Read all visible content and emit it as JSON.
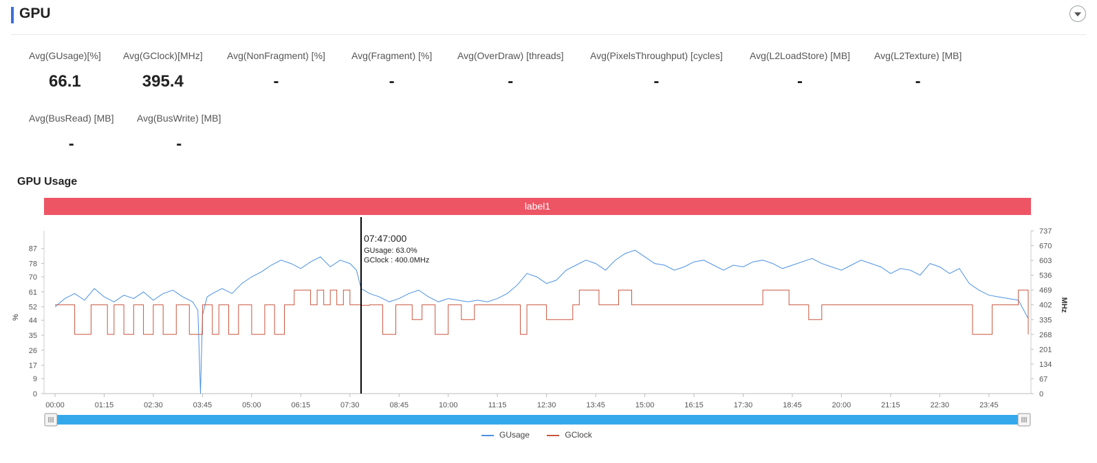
{
  "section": {
    "title": "GPU"
  },
  "metrics": [
    {
      "label": "Avg(GUsage)[%]",
      "value": "66.1"
    },
    {
      "label": "Avg(GClock)[MHz]",
      "value": "395.4"
    },
    {
      "label": "Avg(NonFragment) [%]",
      "value": "-"
    },
    {
      "label": "Avg(Fragment) [%]",
      "value": "-"
    },
    {
      "label": "Avg(OverDraw) [threads]",
      "value": "-"
    },
    {
      "label": "Avg(PixelsThroughput) [cycles]",
      "value": "-"
    },
    {
      "label": "Avg(L2LoadStore) [MB]",
      "value": "-"
    },
    {
      "label": "Avg(L2Texture) [MB]",
      "value": "-"
    },
    {
      "label": "Avg(BusRead) [MB]",
      "value": "-"
    },
    {
      "label": "Avg(BusWrite) [MB]",
      "value": "-"
    }
  ],
  "chart_title": "GPU Usage",
  "label_band": "label1",
  "chart_data": {
    "type": "line",
    "y_left_label": "%",
    "y_right_label": "MHz",
    "y_left_ticks": [
      "0",
      "9",
      "17",
      "26",
      "35",
      "44",
      "52",
      "61",
      "70",
      "78",
      "87"
    ],
    "y_right_ticks": [
      "0",
      "67",
      "134",
      "201",
      "268",
      "335",
      "402",
      "469",
      "536",
      "603",
      "670",
      "737"
    ],
    "y_left_range": [
      0,
      97.6
    ],
    "y_right_range": [
      0,
      737
    ],
    "x_ticks": [
      "00:00",
      "01:15",
      "02:30",
      "03:45",
      "05:00",
      "06:15",
      "07:30",
      "08:45",
      "10:00",
      "11:15",
      "12:30",
      "13:45",
      "15:00",
      "16:15",
      "17:30",
      "18:45",
      "20:00",
      "21:15",
      "22:30",
      "23:45"
    ],
    "x_range_minutes": [
      0,
      1485
    ],
    "tooltip": {
      "time": "07:47:000",
      "minute": 467,
      "line1": "GUsage: 63.0%",
      "line2": "GClock : 400.0MHz"
    },
    "series": [
      {
        "name": "GUsage",
        "axis": "left",
        "color": "#4a90e2",
        "x": [
          0,
          15,
          30,
          45,
          60,
          75,
          90,
          105,
          120,
          135,
          150,
          165,
          180,
          195,
          210,
          218,
          222,
          225,
          232,
          240,
          255,
          270,
          285,
          300,
          315,
          330,
          345,
          360,
          375,
          390,
          405,
          420,
          435,
          450,
          460,
          467,
          480,
          495,
          510,
          525,
          540,
          555,
          570,
          585,
          600,
          615,
          630,
          645,
          660,
          675,
          690,
          705,
          720,
          735,
          750,
          765,
          780,
          795,
          810,
          825,
          840,
          855,
          870,
          885,
          900,
          915,
          930,
          945,
          960,
          975,
          990,
          1005,
          1020,
          1035,
          1050,
          1065,
          1080,
          1095,
          1110,
          1125,
          1140,
          1155,
          1170,
          1185,
          1200,
          1215,
          1230,
          1245,
          1260,
          1275,
          1290,
          1305,
          1320,
          1335,
          1350,
          1365,
          1380,
          1395,
          1410,
          1425,
          1440,
          1455,
          1470,
          1485
        ],
        "y": [
          52,
          57,
          60,
          56,
          63,
          58,
          55,
          59,
          57,
          61,
          56,
          60,
          62,
          58,
          55,
          50,
          0,
          47,
          58,
          60,
          63,
          60,
          66,
          70,
          73,
          77,
          80,
          78,
          75,
          79,
          82,
          76,
          80,
          78,
          74,
          63,
          60,
          58,
          55,
          57,
          60,
          62,
          58,
          55,
          57,
          56,
          55,
          56,
          55,
          57,
          60,
          65,
          72,
          70,
          66,
          68,
          74,
          77,
          80,
          78,
          74,
          80,
          84,
          86,
          82,
          78,
          77,
          74,
          76,
          79,
          80,
          77,
          74,
          77,
          76,
          79,
          80,
          78,
          75,
          77,
          79,
          81,
          78,
          76,
          74,
          77,
          80,
          78,
          76,
          72,
          75,
          74,
          71,
          78,
          76,
          72,
          75,
          66,
          62,
          59,
          58,
          57,
          56,
          45
        ]
      },
      {
        "name": "GClock",
        "axis": "right",
        "color": "#c9543c",
        "x": [
          0,
          25,
          30,
          45,
          55,
          80,
          90,
          105,
          120,
          135,
          150,
          165,
          185,
          205,
          225,
          240,
          250,
          265,
          280,
          300,
          320,
          330,
          335,
          350,
          365,
          380,
          390,
          400,
          410,
          420,
          430,
          440,
          450,
          467,
          480,
          500,
          520,
          545,
          560,
          580,
          600,
          620,
          640,
          660,
          680,
          700,
          710,
          720,
          750,
          790,
          800,
          830,
          860,
          880,
          900,
          925,
          950,
          1000,
          1050,
          1080,
          1120,
          1150,
          1170,
          1200,
          1240,
          1280,
          1300,
          1350,
          1380,
          1400,
          1430,
          1450,
          1470,
          1485
        ],
        "y": [
          402,
          402,
          268,
          268,
          402,
          268,
          402,
          268,
          402,
          268,
          402,
          268,
          402,
          268,
          402,
          268,
          402,
          268,
          402,
          268,
          402,
          402,
          268,
          402,
          469,
          469,
          402,
          469,
          402,
          469,
          402,
          469,
          402,
          400,
          402,
          268,
          402,
          335,
          402,
          268,
          402,
          335,
          402,
          402,
          402,
          402,
          268,
          402,
          335,
          402,
          469,
          402,
          469,
          402,
          402,
          402,
          402,
          402,
          402,
          469,
          402,
          335,
          402,
          402,
          402,
          402,
          402,
          402,
          402,
          268,
          402,
          402,
          469,
          268
        ]
      }
    ]
  }
}
